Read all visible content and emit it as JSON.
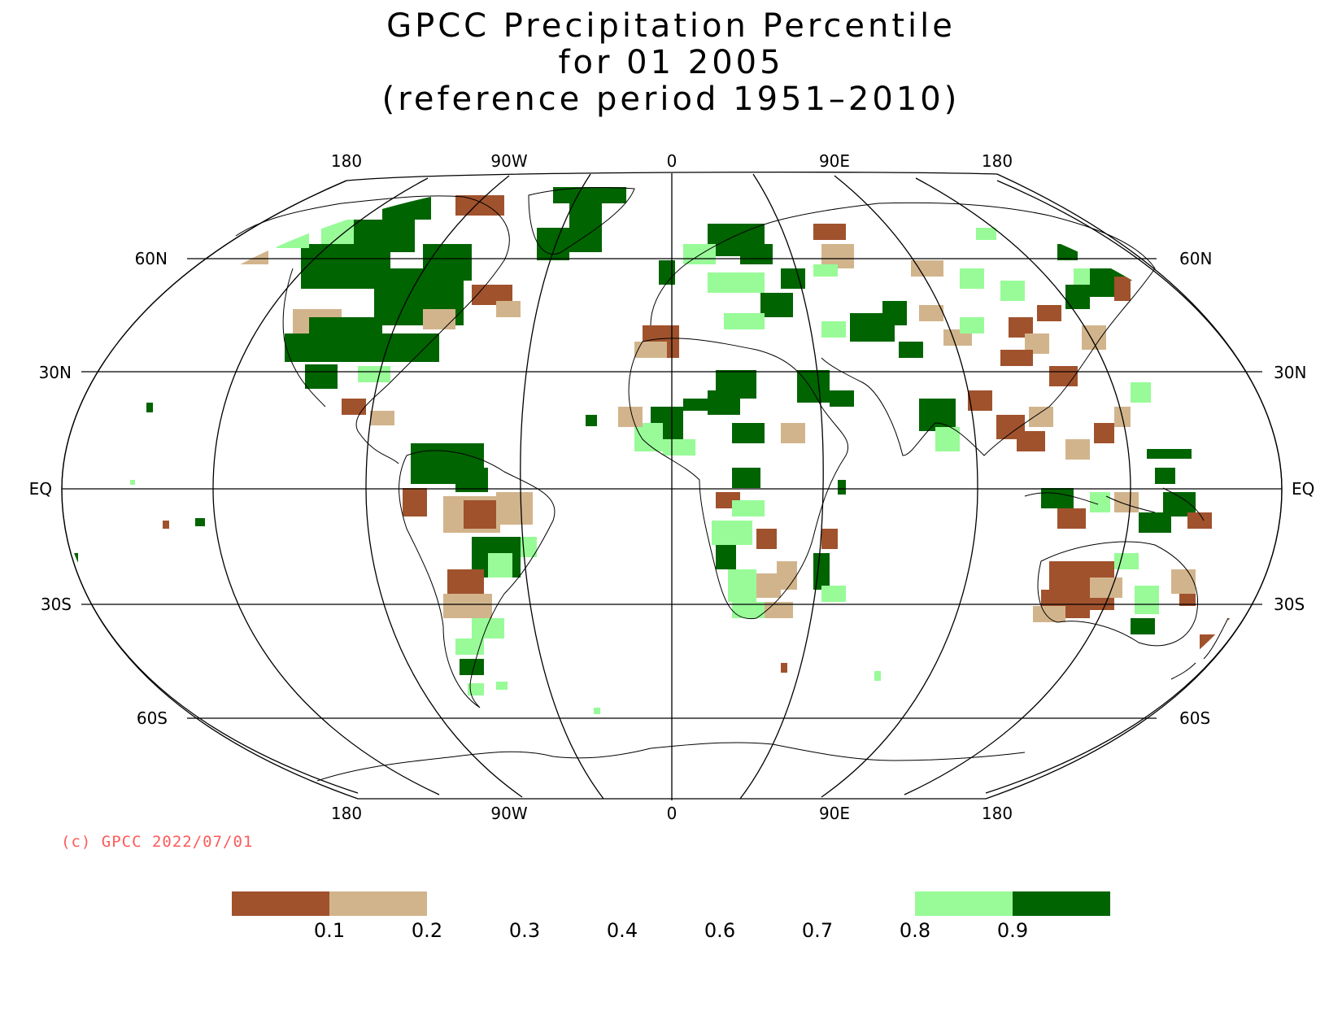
{
  "title": {
    "line1": "GPCC Precipitation Percentile",
    "line2": "for 01 2005",
    "line3": "(reference period 1951–2010)"
  },
  "map": {
    "projection": "Robinson",
    "lon_labels_top": [
      "180",
      "90W",
      "0",
      "90E",
      "180"
    ],
    "lon_labels_bottom": [
      "180",
      "90W",
      "0",
      "90E",
      "180"
    ],
    "lat_labels": [
      "60N",
      "30N",
      "EQ",
      "30S",
      "60S"
    ]
  },
  "copyright": "(c) GPCC 2022/07/01",
  "colorbar": {
    "colors": [
      "#a0522d",
      "#d2b48c",
      "#ffffff",
      "#ffffff",
      "#ffffff",
      "#ffffff",
      "#ffffff",
      "#98fb98",
      "#006400"
    ],
    "ticks": [
      "0.1",
      "0.2",
      "0.3",
      "0.4",
      "0.6",
      "0.7",
      "0.8",
      "0.9"
    ]
  },
  "legend_colors": {
    "very_dry": "#a0522d",
    "dry": "#d2b48c",
    "wet": "#98fb98",
    "very_wet": "#006400"
  }
}
